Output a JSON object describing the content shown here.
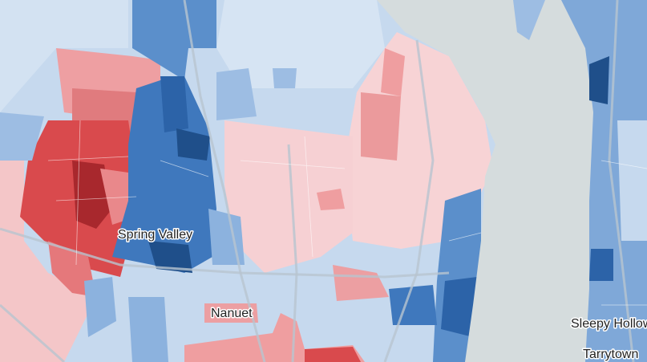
{
  "labels": [
    {
      "text": "Spring Valley"
    },
    {
      "text": "Nanuet"
    },
    {
      "text": "Sleepy Hollow"
    },
    {
      "text": "Tarrytown"
    }
  ]
}
